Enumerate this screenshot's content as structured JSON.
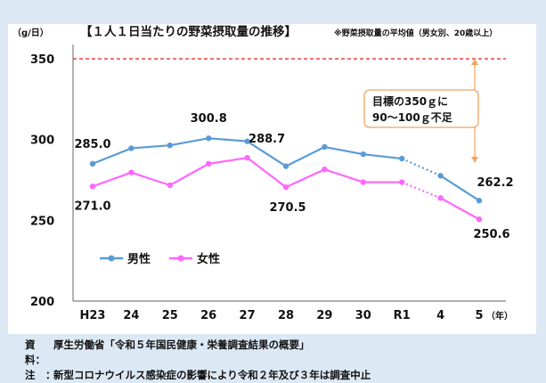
{
  "chart_data": {
    "type": "line",
    "title": "【１人１日当たりの野菜摂取量の推移】",
    "subtitle": "※野菜摂取量の平均値（男女別、20歳以上）",
    "ylabel": "（g/日）",
    "xlabel": "（年）",
    "ylim": [
      200,
      350
    ],
    "yticks": [
      "200",
      "250",
      "300",
      "350"
    ],
    "categories": [
      "H23",
      "24",
      "25",
      "26",
      "27",
      "28",
      "29",
      "30",
      "R1",
      "4",
      "5"
    ],
    "series": [
      {
        "name": "男性",
        "color": "#5b9bd5",
        "values": [
          285.0,
          294.6,
          296.4,
          300.8,
          298.9,
          283.5,
          295.4,
          290.9,
          288.2,
          277.6,
          262.2
        ]
      },
      {
        "name": "女性",
        "color": "#ff66ff",
        "values": [
          271.0,
          279.6,
          271.7,
          285.0,
          288.7,
          270.5,
          281.5,
          273.6,
          273.6,
          263.8,
          250.6
        ]
      }
    ],
    "target": {
      "value": 350,
      "color": "#e31c1c"
    },
    "data_labels": [
      {
        "text": "285.0",
        "series": 0,
        "index": 0
      },
      {
        "text": "300.8",
        "series": 0,
        "index": 3
      },
      {
        "text": "288.7",
        "series": 1,
        "index": 4
      },
      {
        "text": "262.2",
        "series": 0,
        "index": 10
      },
      {
        "text": "271.0",
        "series": 1,
        "index": 0
      },
      {
        "text": "270.5",
        "series": 1,
        "index": 5
      },
      {
        "text": "250.6",
        "series": 1,
        "index": 10
      }
    ],
    "annotation_lines": [
      "目標の350ｇに",
      "90～100ｇ不足"
    ],
    "legend": [
      "男性",
      "女性"
    ]
  },
  "notes": {
    "source_label": "資料：",
    "source_text": "厚生労働省「令和５年国民健康・栄養調査結果の概要」",
    "note_label": "注　：",
    "note_text": "新型コロナウイルス感染症の影響により令和２年及び３年は調査中止"
  }
}
